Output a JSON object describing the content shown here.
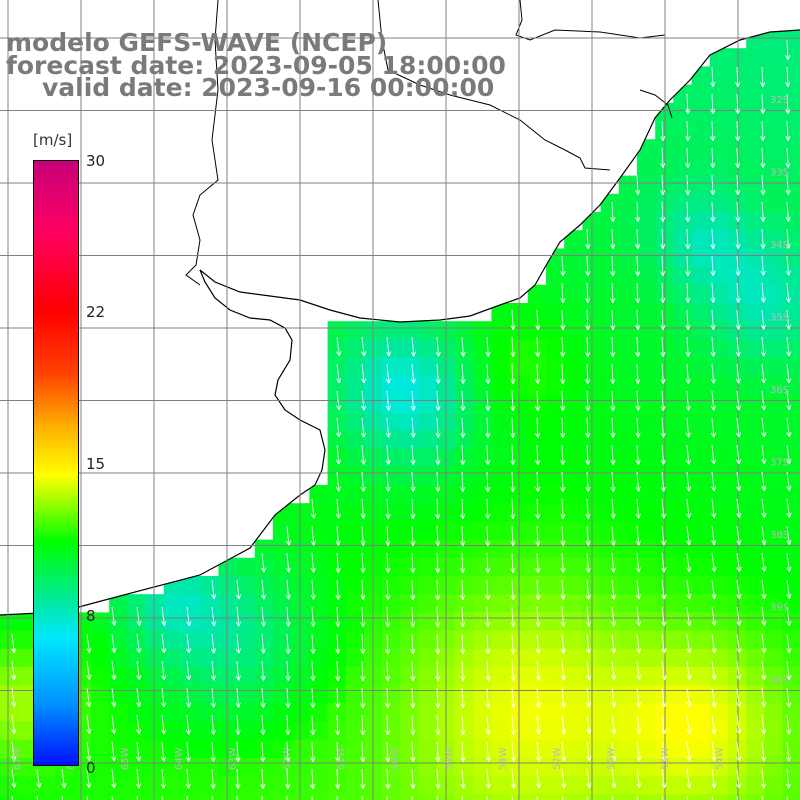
{
  "title": {
    "line1": "modelo GEFS-WAVE (NCEP)",
    "line2": "forecast date: 2023-09-05 18:00:00",
    "line3": "valid date: 2023-09-16 00:00:00"
  },
  "colorbar": {
    "unit": "[m/s]",
    "ticks": [
      "30",
      "22",
      "15",
      "8",
      "0"
    ]
  },
  "map": {
    "lat_labels": [
      "32S",
      "33S",
      "34S",
      "35S",
      "36S",
      "37S",
      "38S",
      "39S",
      "40S"
    ],
    "lon_labels": [
      "67W",
      "66W",
      "65W",
      "64W",
      "63W",
      "62W",
      "61W",
      "60W",
      "59W",
      "58W",
      "57W",
      "56W",
      "55W",
      "54W"
    ],
    "land_color": "#ffffff",
    "coast_color": "#000000",
    "grid_color": "#808080"
  }
}
